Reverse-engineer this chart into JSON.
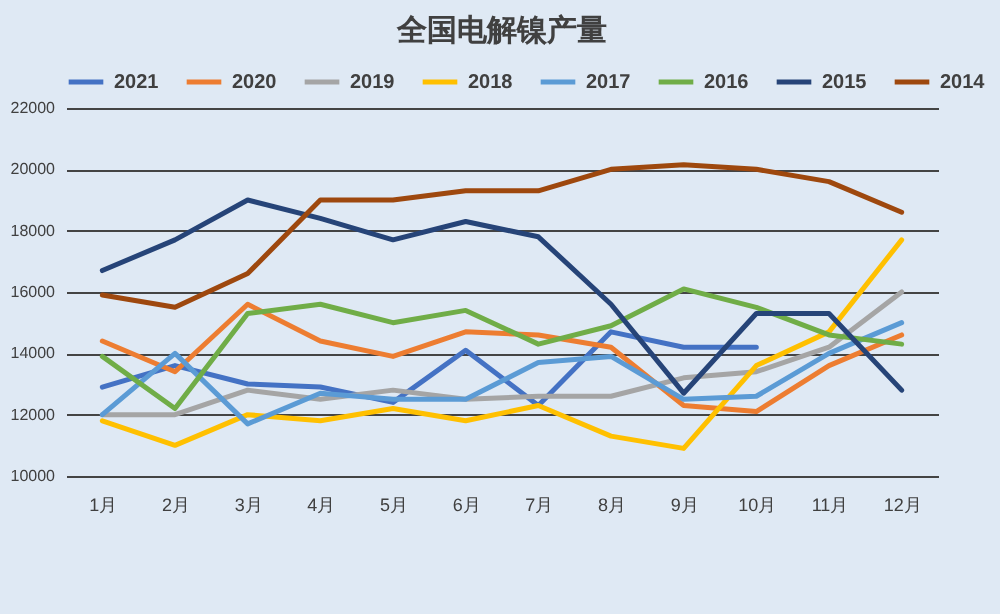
{
  "chart_data": {
    "type": "line",
    "title": "全国电解镍产量",
    "categories": [
      "1月",
      "2月",
      "3月",
      "4月",
      "5月",
      "6月",
      "7月",
      "8月",
      "9月",
      "10月",
      "11月",
      "12月"
    ],
    "series": [
      {
        "name": "2021",
        "color": "#4472c4",
        "values": [
          12900,
          13600,
          13000,
          12900,
          12400,
          14100,
          12300,
          14700,
          14200,
          14200,
          null,
          null
        ]
      },
      {
        "name": "2020",
        "color": "#ed7d31",
        "values": [
          14400,
          13400,
          15600,
          14400,
          13900,
          14700,
          14600,
          14200,
          12300,
          12100,
          13600,
          14600
        ]
      },
      {
        "name": "2019",
        "color": "#a5a5a5",
        "values": [
          12000,
          12000,
          12800,
          12500,
          12800,
          12500,
          12600,
          12600,
          13200,
          13400,
          14200,
          16000
        ]
      },
      {
        "name": "2018",
        "color": "#ffc000",
        "values": [
          11800,
          11000,
          12000,
          11800,
          12200,
          11800,
          12300,
          11300,
          10900,
          13600,
          14700,
          17700
        ]
      },
      {
        "name": "2017",
        "color": "#5b9bd5",
        "values": [
          12000,
          14000,
          11700,
          12700,
          12500,
          12500,
          13700,
          13900,
          12500,
          12600,
          14000,
          15000
        ]
      },
      {
        "name": "2016",
        "color": "#70ad47",
        "values": [
          13900,
          12200,
          15300,
          15600,
          15000,
          15400,
          14300,
          14900,
          16100,
          15500,
          14600,
          14300
        ]
      },
      {
        "name": "2015",
        "color": "#264478",
        "values": [
          16700,
          17700,
          19000,
          18400,
          17700,
          18300,
          17800,
          15600,
          12700,
          15300,
          15300,
          12800
        ]
      },
      {
        "name": "2014",
        "color": "#9e480e",
        "values": [
          15900,
          15500,
          16600,
          19000,
          19000,
          19300,
          19300,
          20000,
          20150,
          20000,
          19600,
          18600
        ]
      }
    ],
    "ylim": [
      10000,
      22000
    ],
    "yticks": [
      10000,
      12000,
      14000,
      16000,
      18000,
      20000,
      22000
    ],
    "grid": "y",
    "legend": "top"
  }
}
